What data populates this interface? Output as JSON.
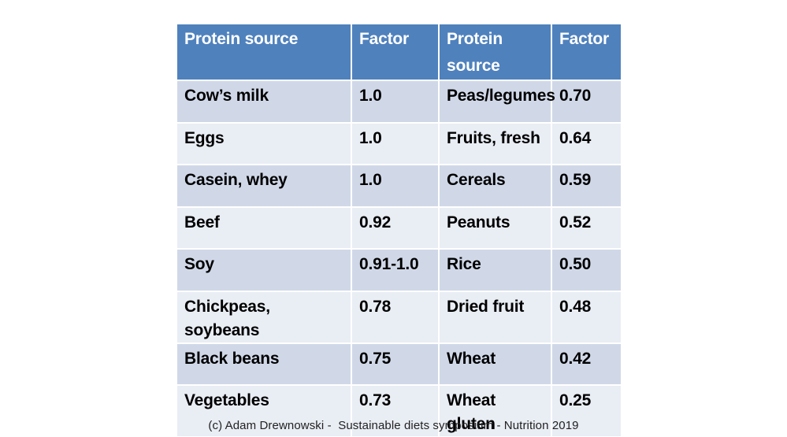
{
  "table": {
    "headers": [
      "Protein source",
      "Factor",
      "Protein source",
      "Factor"
    ],
    "rows": [
      [
        "Cow’s milk",
        "1.0",
        "Peas/legumes",
        "0.70"
      ],
      [
        "Eggs",
        "1.0",
        "Fruits, fresh",
        "0.64"
      ],
      [
        "Casein, whey",
        "1.0",
        "Cereals",
        "0.59"
      ],
      [
        "Beef",
        "0.92",
        "Peanuts",
        "0.52"
      ],
      [
        "Soy",
        "0.91-1.0",
        "Rice",
        "0.50"
      ],
      [
        "Chickpeas, soybeans",
        "0.78",
        "Dried fruit",
        "0.48"
      ],
      [
        "Black beans",
        "0.75",
        "Wheat",
        "0.42"
      ],
      [
        "Vegetables",
        "0.73",
        "Wheat gluten",
        "0.25"
      ]
    ],
    "colors": {
      "header_bg": "#4f81bd",
      "row_odd_bg": "#d0d8e8",
      "row_even_bg": "#e9edf4"
    }
  },
  "footer": {
    "credit": "(c) Adam Drewnowski -  Sustainable diets symposium - Nutrition 2019"
  }
}
